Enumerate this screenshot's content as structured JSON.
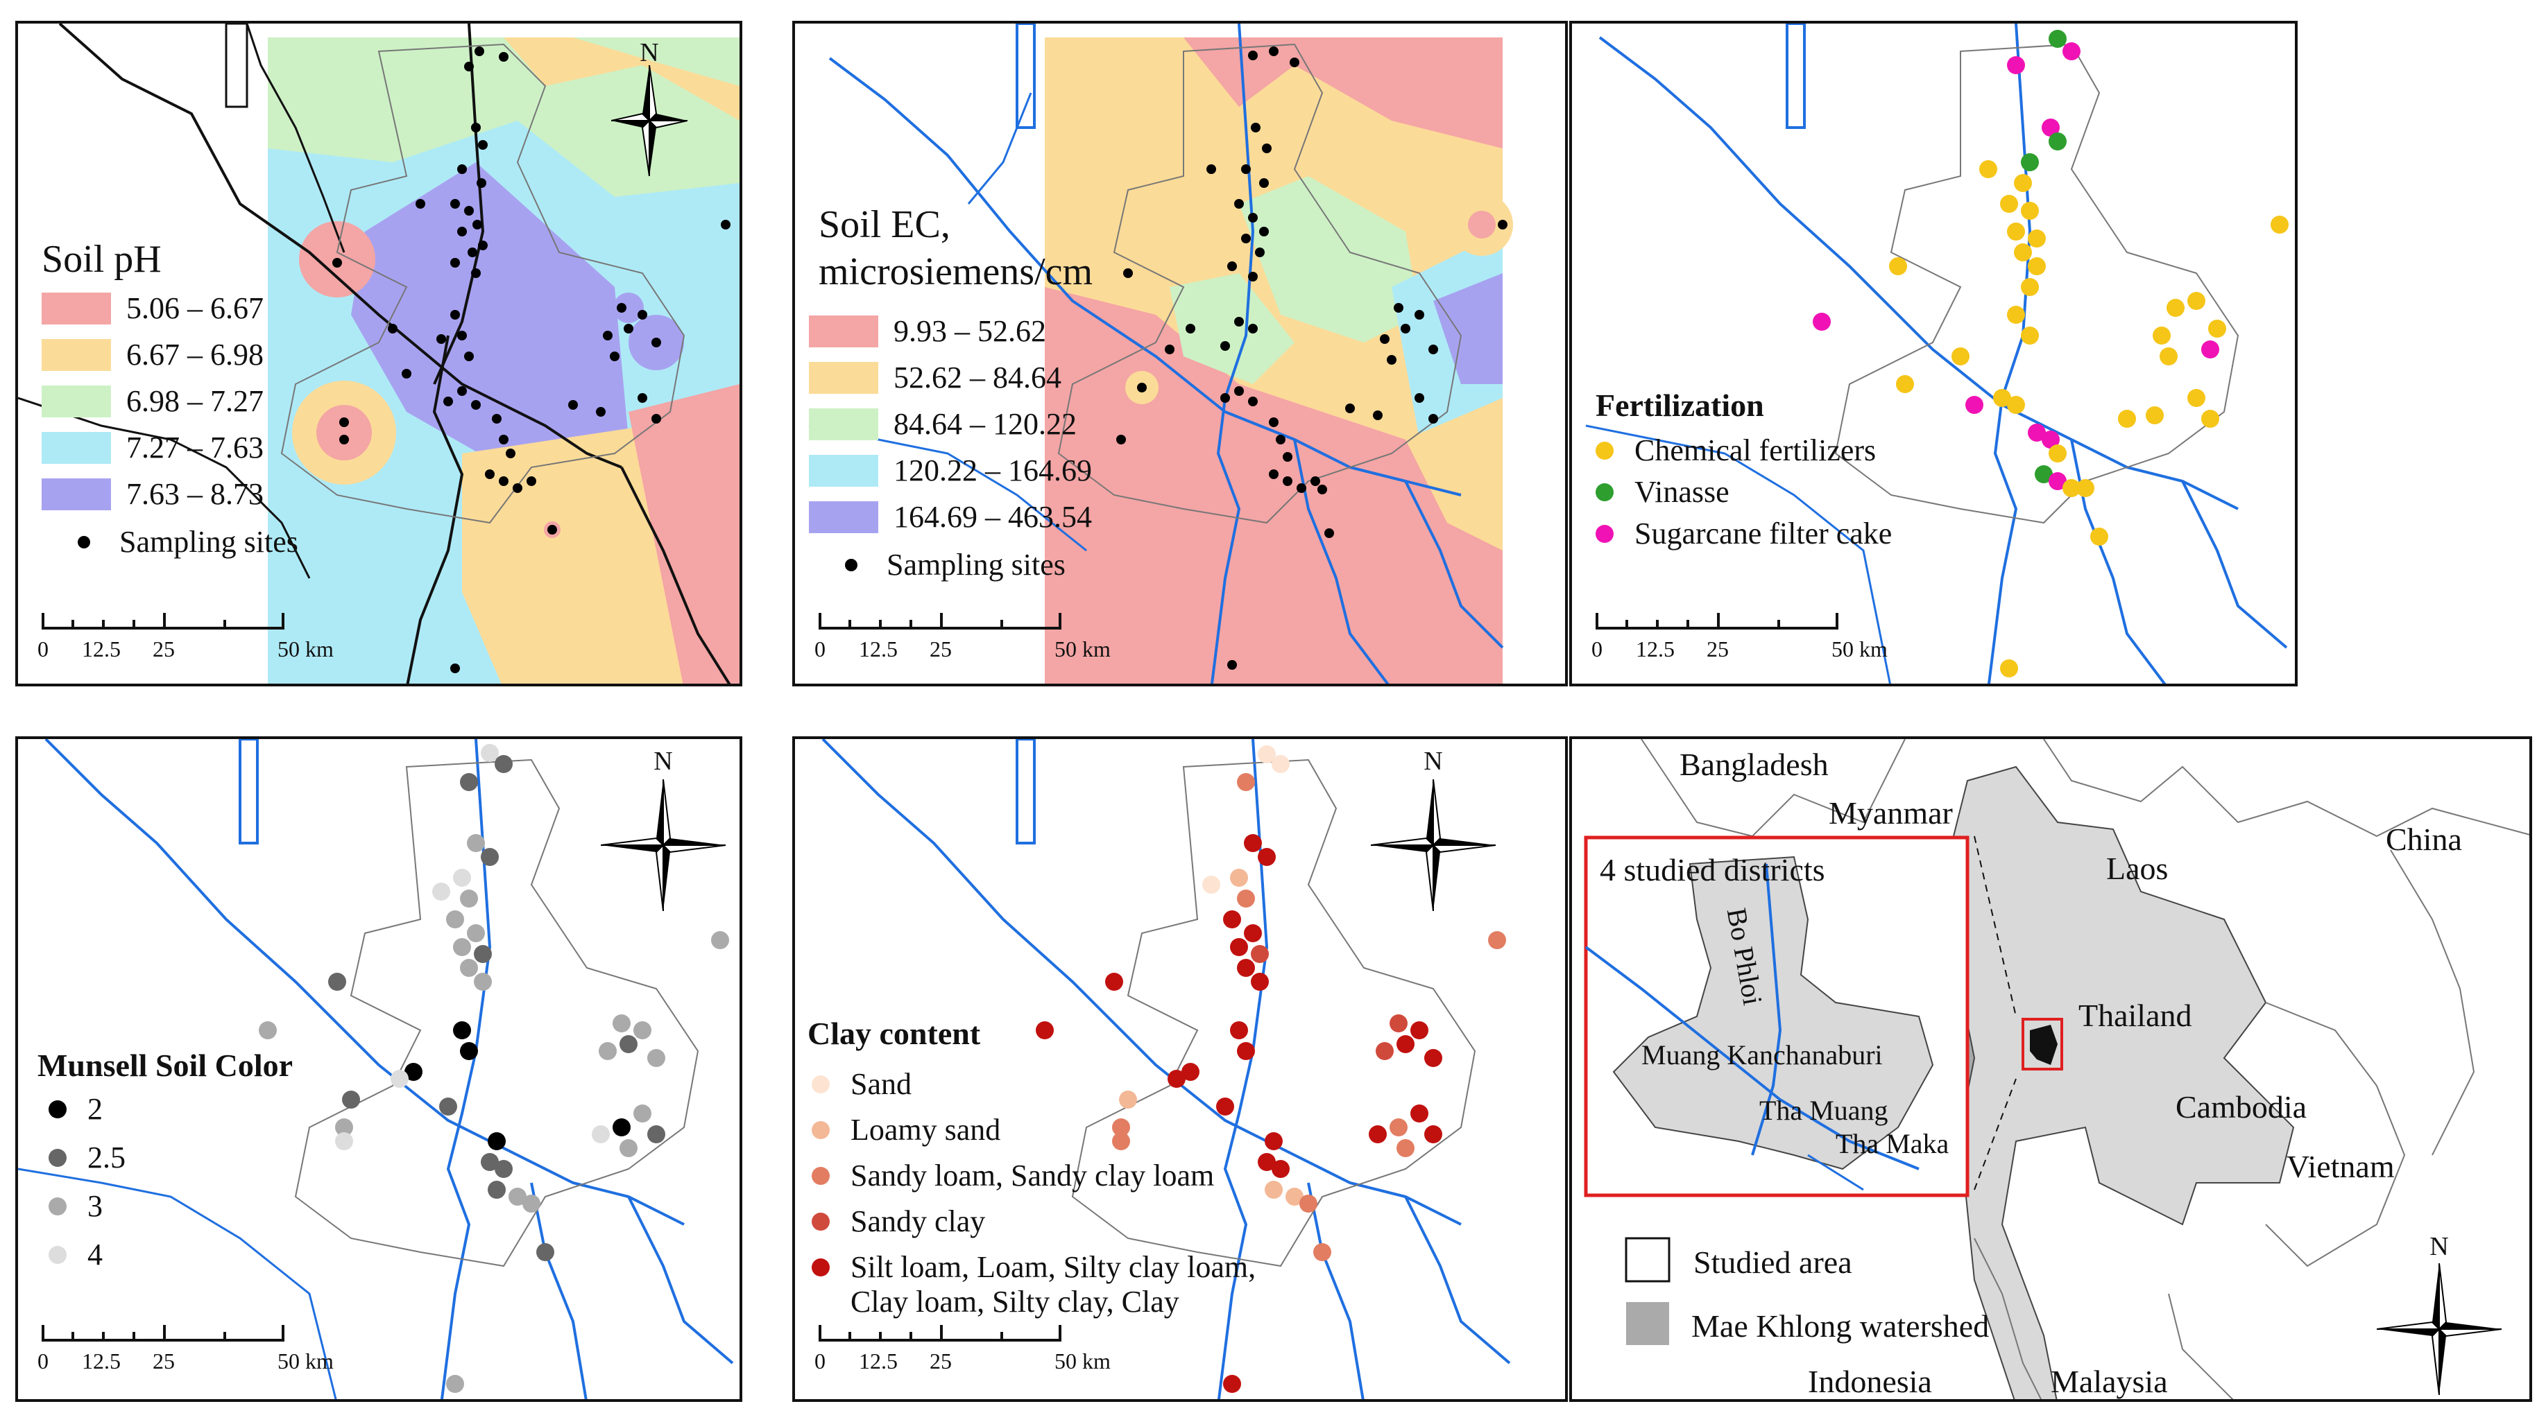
{
  "panels": {
    "ph": {
      "legend_title": "Soil pH",
      "classes": [
        {
          "label": "5.06 – 6.67",
          "color": "#f4a5a5"
        },
        {
          "label": "6.67 – 6.98",
          "color": "#fbdb98"
        },
        {
          "label": "6.98 – 7.27",
          "color": "#cdf1c5"
        },
        {
          "label": "7.27 – 7.63",
          "color": "#aeeaf6"
        },
        {
          "label": "7.63 – 8.73",
          "color": "#a7a2f0"
        }
      ],
      "points_label": "Sampling sites"
    },
    "ec": {
      "legend_title_line1": "Soil EC,",
      "legend_title_line2": "microsiemens/cm",
      "classes": [
        {
          "label": "9.93 – 52.62",
          "color": "#f4a5a5"
        },
        {
          "label": "52.62 – 84.64",
          "color": "#fbdb98"
        },
        {
          "label": "84.64 – 120.22",
          "color": "#cdf1c5"
        },
        {
          "label": "120.22 – 164.69",
          "color": "#aeeaf6"
        },
        {
          "label": "164.69 – 463.54",
          "color": "#a7a2f0"
        }
      ],
      "points_label": "Sampling sites"
    },
    "fert": {
      "legend_title": "Fertilization",
      "classes": [
        {
          "label": "Chemical fertilizers",
          "color": "#f5c518"
        },
        {
          "label": "Vinasse",
          "color": "#2e9e2e"
        },
        {
          "label": "Sugarcane filter cake",
          "color": "#f012b4"
        }
      ]
    },
    "munsell": {
      "legend_title": "Munsell Soil Color",
      "classes": [
        {
          "label": "2",
          "color": "#000000"
        },
        {
          "label": "2.5",
          "color": "#666666"
        },
        {
          "label": "3",
          "color": "#aaaaaa"
        },
        {
          "label": "4",
          "color": "#dddddd"
        }
      ]
    },
    "clay": {
      "legend_title": "Clay content",
      "classes": [
        {
          "label": "Sand",
          "color": "#fde3d2"
        },
        {
          "label": "Loamy sand",
          "color": "#f3b896"
        },
        {
          "label": "Sandy loam, Sandy clay loam",
          "color": "#e27d62"
        },
        {
          "label": "Sandy clay",
          "color": "#d04a3c"
        },
        {
          "label": "Silt loam, Loam, Silty clay loam,",
          "label2": "Clay loam, Silty clay, Clay",
          "color": "#c0110f"
        }
      ]
    },
    "locator": {
      "countries": {
        "bangladesh": "Bangladesh",
        "myanmar": "Myanmar",
        "laos": "Laos",
        "china": "China",
        "thailand": "Thailand",
        "cambodia": "Cambodia",
        "vietnam": "Vietnam",
        "indonesia": "Indonesia",
        "malaysia": "Malaysia"
      },
      "inset_title": "4 studied districts",
      "districts": {
        "bo_phloi": "Bo Phloi",
        "muang": "Muang Kanchanaburi",
        "tha_muang": "Tha Muang",
        "tha_maka": "Tha Maka"
      },
      "legend": {
        "studied_area": "Studied area",
        "watershed": "Mae Khlong watershed"
      }
    }
  },
  "scalebar": {
    "labels": [
      "0",
      "12.5",
      "25",
      "50 km"
    ]
  },
  "north_label": "N",
  "colors": {
    "river": "#1f6fe0",
    "border": "#111111",
    "district": "#888888",
    "inset_frame": "#e01f1f",
    "watershed": "#d9d9d9"
  }
}
